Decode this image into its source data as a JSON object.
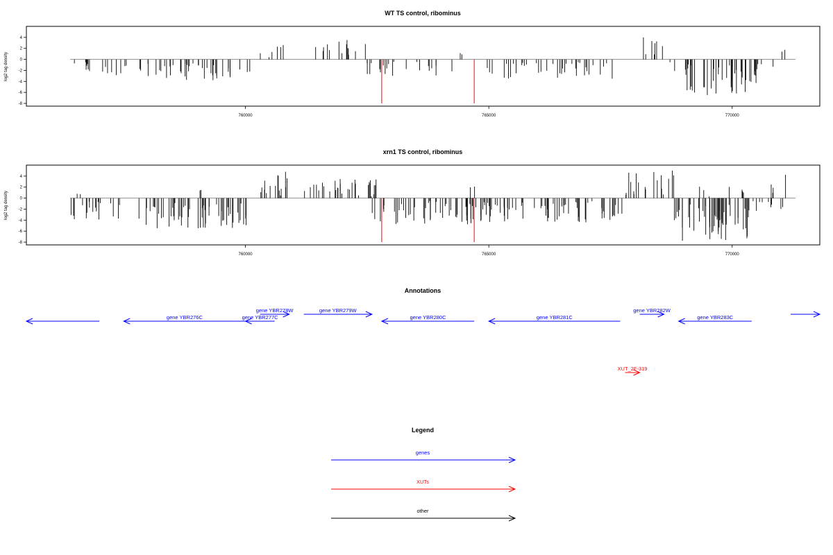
{
  "chart_data": [
    {
      "type": "bar",
      "title": "WT TS control, ribominus",
      "ylabel": "log2 tag density",
      "xlabel": "",
      "xlim": [
        755500,
        771800
      ],
      "ylim": [
        -8.5,
        6
      ],
      "xticks": [
        760000,
        765000,
        770000
      ],
      "yticks": [
        4,
        2,
        0,
        -2,
        -4,
        -6,
        -8
      ],
      "highlight_color": "#ff0000",
      "highlight_positions": [
        762800,
        764700
      ],
      "highlight_values": [
        -8,
        -8
      ],
      "regions": [
        {
          "start": 756400,
          "end": 756900,
          "min": -2.5,
          "max": -0.5,
          "density": 14
        },
        {
          "start": 757000,
          "end": 757600,
          "min": -3.5,
          "max": -0.8,
          "density": 14
        },
        {
          "start": 757800,
          "end": 760100,
          "min": -3.8,
          "max": -0.6,
          "density": 18
        },
        {
          "start": 760300,
          "end": 760900,
          "min": 0.4,
          "max": 2.6,
          "density": 10
        },
        {
          "start": 761300,
          "end": 762500,
          "min": 0.4,
          "max": 3.8,
          "density": 12
        },
        {
          "start": 762300,
          "end": 764400,
          "min": -3.0,
          "max": -0.4,
          "density": 10
        },
        {
          "start": 764400,
          "end": 764500,
          "min": 0.3,
          "max": 2.0,
          "density": 3
        },
        {
          "start": 764900,
          "end": 767600,
          "min": -3.6,
          "max": -0.5,
          "density": 14
        },
        {
          "start": 768000,
          "end": 768700,
          "min": 0.4,
          "max": 5.0,
          "density": 10
        },
        {
          "start": 768700,
          "end": 769200,
          "min": -2.5,
          "max": -0.5,
          "density": 8
        },
        {
          "start": 769000,
          "end": 770500,
          "min": -6.5,
          "max": -1.0,
          "density": 26
        },
        {
          "start": 770500,
          "end": 771000,
          "min": -2.0,
          "max": -0.4,
          "density": 8
        },
        {
          "start": 771000,
          "end": 771100,
          "min": 0.5,
          "max": 2.4,
          "density": 2
        }
      ]
    },
    {
      "type": "bar",
      "title": "xrn1 TS control, ribominus",
      "ylabel": "log2 tag density",
      "xlabel": "",
      "xlim": [
        755500,
        771800
      ],
      "ylim": [
        -8.5,
        6
      ],
      "xticks": [
        760000,
        765000,
        770000
      ],
      "yticks": [
        4,
        2,
        0,
        -2,
        -4,
        -6,
        -8
      ],
      "highlight_color": "#ff0000",
      "highlight_positions": [
        762800,
        764700
      ],
      "highlight_values": [
        -8,
        -8
      ],
      "regions": [
        {
          "start": 756400,
          "end": 757500,
          "min": -4.0,
          "max": -0.5,
          "density": 16
        },
        {
          "start": 756500,
          "end": 756800,
          "min": 0.3,
          "max": 1.2,
          "density": 4
        },
        {
          "start": 757800,
          "end": 760100,
          "min": -5.5,
          "max": -0.8,
          "density": 26
        },
        {
          "start": 759000,
          "end": 759300,
          "min": 0.3,
          "max": 1.6,
          "density": 3
        },
        {
          "start": 760200,
          "end": 760900,
          "min": 0.4,
          "max": 4.8,
          "density": 22
        },
        {
          "start": 761200,
          "end": 762700,
          "min": 0.3,
          "max": 3.5,
          "density": 20
        },
        {
          "start": 762600,
          "end": 764800,
          "min": -4.8,
          "max": -0.4,
          "density": 22
        },
        {
          "start": 764600,
          "end": 764800,
          "min": 0.4,
          "max": 3.4,
          "density": 4
        },
        {
          "start": 764800,
          "end": 767800,
          "min": -4.4,
          "max": -0.4,
          "density": 22
        },
        {
          "start": 767800,
          "end": 768800,
          "min": 0.4,
          "max": 5.2,
          "density": 18
        },
        {
          "start": 768800,
          "end": 770400,
          "min": -8.0,
          "max": -0.8,
          "density": 34
        },
        {
          "start": 769300,
          "end": 770300,
          "min": 0.3,
          "max": 2.4,
          "density": 8
        },
        {
          "start": 770400,
          "end": 771300,
          "min": -2.5,
          "max": -0.4,
          "density": 10
        },
        {
          "start": 770800,
          "end": 771300,
          "min": 0.4,
          "max": 4.4,
          "density": 8
        }
      ]
    }
  ],
  "annotations": {
    "title": "Annotations",
    "features": [
      {
        "label": "",
        "kind": "gene",
        "start": 755500,
        "end": 757000,
        "strand": "-",
        "row": 0,
        "color": "#0000ff"
      },
      {
        "label": "gene YBR276C",
        "kind": "gene",
        "start": 757500,
        "end": 760000,
        "strand": "-",
        "row": 0,
        "color": "#0000ff"
      },
      {
        "label": "gene YBR277C",
        "kind": "gene",
        "start": 760000,
        "end": 760600,
        "strand": "-",
        "row": 0,
        "color": "#0000ff"
      },
      {
        "label": "gene YBR278W",
        "kind": "gene",
        "start": 760300,
        "end": 760900,
        "strand": "+",
        "row": 1,
        "color": "#0000ff"
      },
      {
        "label": "gene YBR279W",
        "kind": "gene",
        "start": 761200,
        "end": 762600,
        "strand": "+",
        "row": 1,
        "color": "#0000ff"
      },
      {
        "label": "gene YBR280C",
        "kind": "gene",
        "start": 762800,
        "end": 764700,
        "strand": "-",
        "row": 0,
        "color": "#0000ff"
      },
      {
        "label": "gene YBR281C",
        "kind": "gene",
        "start": 765000,
        "end": 767700,
        "strand": "-",
        "row": 0,
        "color": "#0000ff"
      },
      {
        "label": "gene YBR282W",
        "kind": "gene",
        "start": 768100,
        "end": 768600,
        "strand": "+",
        "row": 1,
        "color": "#0000ff"
      },
      {
        "label": "gene YBR283C",
        "kind": "gene",
        "start": 768900,
        "end": 770400,
        "strand": "-",
        "row": 0,
        "color": "#0000ff"
      },
      {
        "label": "",
        "kind": "gene",
        "start": 771200,
        "end": 771800,
        "strand": "+",
        "row": 1,
        "color": "#0000ff"
      },
      {
        "label": "XUT_2F-319",
        "kind": "XUT",
        "start": 767800,
        "end": 768100,
        "strand": "+",
        "row": 2,
        "color": "#ff0000"
      }
    ]
  },
  "legend": {
    "title": "Legend",
    "items": [
      {
        "label": "genes",
        "color": "#0000ff"
      },
      {
        "label": "XUTs",
        "color": "#ff0000"
      },
      {
        "label": "other",
        "color": "#000000"
      }
    ]
  }
}
